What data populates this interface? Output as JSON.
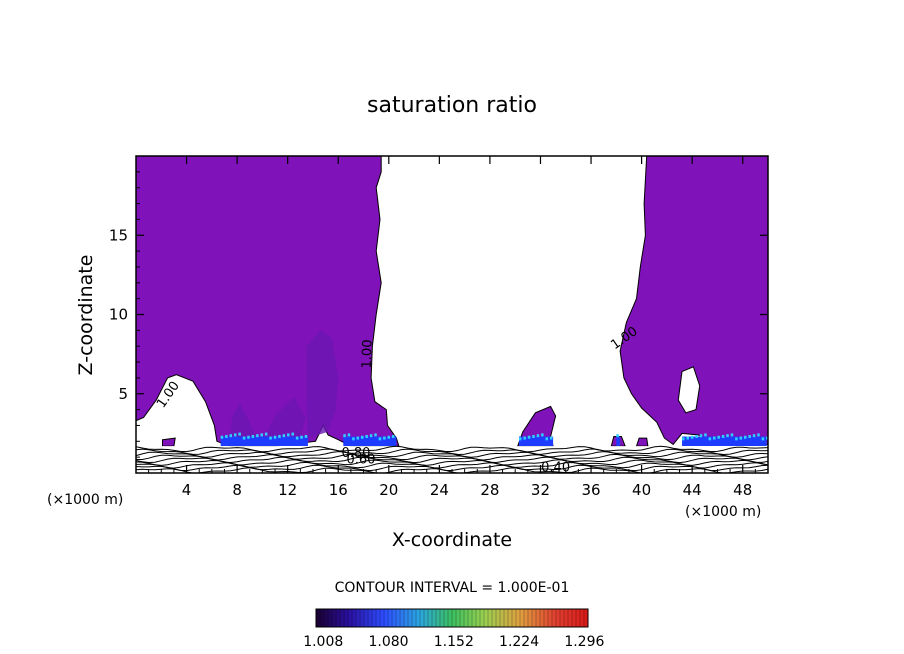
{
  "chart_data": {
    "type": "heatmap",
    "title": "saturation ratio",
    "xlabel": "X-coordinate",
    "ylabel": "Z-coordinate",
    "x_unit_left": "(×1000 m)",
    "x_unit_right": "(×1000 m)",
    "xlim": [
      0,
      50
    ],
    "ylim": [
      0,
      20
    ],
    "x_ticks": [
      4,
      8,
      12,
      16,
      20,
      24,
      28,
      32,
      36,
      40,
      44,
      48
    ],
    "y_ticks": [
      5,
      10,
      15
    ],
    "contour_interval_text": "CONTOUR INTERVAL = 1.000E-01",
    "contour_labels": [
      {
        "text": "1.00",
        "x": 2.8,
        "z": 4.8,
        "rot": -55
      },
      {
        "text": "1.00",
        "x": 18.6,
        "z": 7.5,
        "rot": -88
      },
      {
        "text": "1.00",
        "x": 38.8,
        "z": 8.3,
        "rot": -35
      },
      {
        "text": "0.80",
        "x": 17.4,
        "z": 1.0,
        "rot": 0
      },
      {
        "text": "0.60",
        "x": 17.8,
        "z": 0.6,
        "rot": 0
      },
      {
        "text": "0.40",
        "x": 33.2,
        "z": 0.1,
        "rot": 0
      }
    ],
    "colorbar": {
      "ticks": [
        "1.008",
        "1.080",
        "1.152",
        "1.224",
        "1.296"
      ],
      "min": 1.0,
      "max": 1.3
    },
    "colors": {
      "supersaturated": "#7f12b8",
      "updraft_shade": "#6a16b2",
      "cloud_base": "#1e3cff",
      "cloud_base_hi": "#2fd0ff"
    }
  }
}
